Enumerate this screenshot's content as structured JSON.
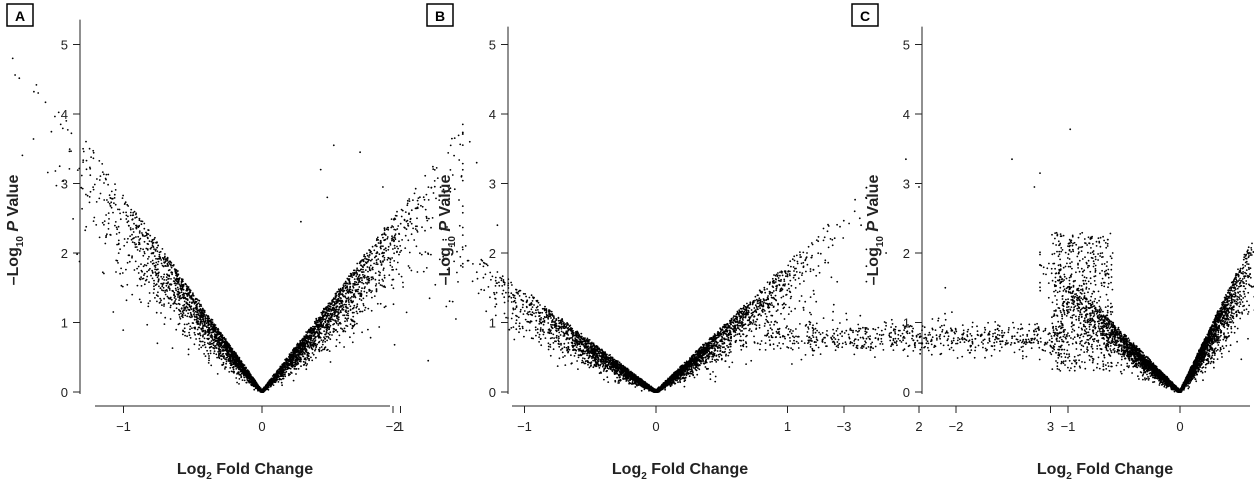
{
  "chart_data": [
    {
      "type": "scatter",
      "panel_label": "A",
      "xlabel_main": "Log",
      "xlabel_sub": "2",
      "xlabel_rest": " Fold Change",
      "ylabel_pre": "–Log",
      "ylabel_sub": "10",
      "ylabel_p": " P",
      "ylabel_rest": " Value",
      "xlim": [
        -2.6,
        1.8
      ],
      "ylim": [
        0,
        5.3
      ],
      "xticks": [
        -2,
        -1,
        0,
        1
      ],
      "xtick_labels": [
        "−2",
        "−1",
        "0",
        "1"
      ],
      "yticks": [
        0,
        1,
        2,
        3,
        4,
        5
      ],
      "ytick_labels": [
        "0",
        "1",
        "2",
        "3",
        "4",
        "5"
      ],
      "distribution": {
        "left_slope": 2.85,
        "right_slope": 2.65,
        "min_x": -1.95,
        "max_x": 1.45,
        "n_points": 4200
      },
      "outliers": [
        [
          -2.25,
          5.3
        ],
        [
          -2.45,
          4.45
        ],
        [
          -2.5,
          3.45
        ],
        [
          -2.2,
          2.8
        ],
        [
          -2.35,
          2.25
        ],
        [
          -2.15,
          2.0
        ],
        [
          -2.1,
          4.6
        ],
        [
          -1.8,
          4.8
        ],
        [
          1.7,
          2.4
        ],
        [
          1.5,
          3.6
        ],
        [
          1.45,
          3.85
        ],
        [
          1.55,
          3.3
        ],
        [
          1.4,
          1.05
        ],
        [
          1.2,
          0.45
        ],
        [
          -2.3,
          4.2
        ],
        [
          -2.05,
          3.7
        ],
        [
          -1.95,
          3.9
        ]
      ]
    },
    {
      "type": "scatter",
      "panel_label": "B",
      "xlabel_main": "Log",
      "xlabel_sub": "2",
      "xlabel_rest": " Fold Change",
      "ylabel_pre": "–Log",
      "ylabel_sub": "10",
      "ylabel_p": " P",
      "ylabel_rest": " Value",
      "xlim": [
        -2.8,
        3.3
      ],
      "ylim": [
        0,
        5.2
      ],
      "xticks": [
        -2,
        -1,
        0,
        1,
        2,
        3
      ],
      "xtick_labels": [
        "−2",
        "−1",
        "0",
        "1",
        "2",
        "3"
      ],
      "yticks": [
        0,
        1,
        2,
        3,
        4,
        5
      ],
      "ytick_labels": [
        "0",
        "1",
        "2",
        "3",
        "4",
        "5"
      ],
      "distribution": {
        "left_slope": 1.45,
        "right_slope": 1.85,
        "min_x": -2.4,
        "max_x": 1.6,
        "n_points": 3800
      },
      "outliers": [
        [
          3.15,
          3.78
        ],
        [
          1.9,
          3.35
        ],
        [
          2.0,
          2.95
        ],
        [
          2.2,
          1.5
        ],
        [
          2.25,
          1.15
        ],
        [
          1.75,
          2.0
        ],
        [
          1.55,
          2.5
        ],
        [
          -2.45,
          3.55
        ],
        [
          -2.7,
          2.45
        ],
        [
          -2.5,
          2.8
        ],
        [
          -2.45,
          1.35
        ],
        [
          -2.55,
          3.2
        ],
        [
          -2.25,
          3.45
        ]
      ]
    },
    {
      "type": "scatter",
      "panel_label": "C",
      "xlabel_main": "Log",
      "xlabel_sub": "2",
      "xlabel_rest": " Fold Change",
      "ylabel_pre": "–Log",
      "ylabel_sub": "10",
      "ylabel_p": " P",
      "ylabel_rest": " Value",
      "xlim": [
        -3.9,
        1.7
      ],
      "ylim": [
        0,
        5.2
      ],
      "xticks": [
        -3,
        -2,
        -1,
        0,
        1
      ],
      "xtick_labels": [
        "−3",
        "−2",
        "−1",
        "0",
        "1"
      ],
      "yticks": [
        0,
        1,
        2,
        3,
        4,
        5
      ],
      "ytick_labels": [
        "0",
        "1",
        "2",
        "3",
        "4",
        "5"
      ],
      "distribution": {
        "left_slope": 1.65,
        "right_slope": 3.4,
        "min_x": -1.25,
        "max_x": 0.85,
        "tail_from": -3.7,
        "tail_y": 0.75,
        "n_points": 4000
      },
      "outliers": [
        [
          -3.8,
          0.72
        ],
        [
          1.55,
          2.75
        ],
        [
          1.5,
          0.9
        ],
        [
          -1.5,
          3.35
        ],
        [
          -1.25,
          3.15
        ],
        [
          -1.3,
          2.95
        ],
        [
          1.2,
          1.45
        ],
        [
          -3.3,
          1.0
        ]
      ]
    }
  ]
}
